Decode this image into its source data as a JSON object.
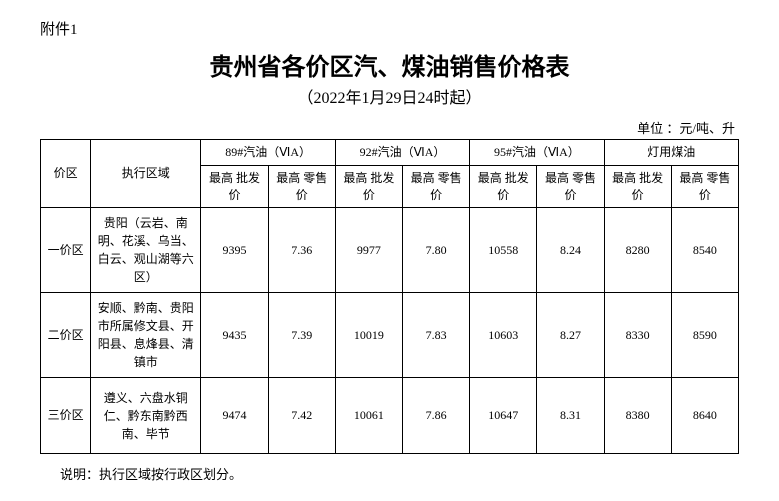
{
  "attachment": "附件1",
  "title": "贵州省各价区汽、煤油销售价格表",
  "subtitle": "（2022年1月29日24时起）",
  "unit": "单位 ：元/吨、升",
  "headers": {
    "zone": "价区",
    "region": "执行区域",
    "groups": [
      "89#汽油（ⅥA）",
      "92#汽油（ⅥA）",
      "95#汽油（ⅥA）",
      "灯用煤油"
    ],
    "sub_wholesale": "最高\n批发价",
    "sub_retail": "最高\n零售价"
  },
  "rows": [
    {
      "zone": "一价区",
      "region": "贵阳（云岩、南明、花溪、乌当、白云、观山湖等六区）",
      "vals": [
        "9395",
        "7.36",
        "9977",
        "7.80",
        "10558",
        "8.24",
        "8280",
        "8540"
      ]
    },
    {
      "zone": "二价区",
      "region": "安顺、黔南、贵阳市所属修文县、开阳县、息烽县、清镇市",
      "vals": [
        "9435",
        "7.39",
        "10019",
        "7.83",
        "10603",
        "8.27",
        "8330",
        "8590"
      ]
    },
    {
      "zone": "三价区",
      "region": "遵义、六盘水铜仁、黔东南黔西南、毕节",
      "vals": [
        "9474",
        "7.42",
        "10061",
        "7.86",
        "10647",
        "8.31",
        "8380",
        "8640"
      ]
    }
  ],
  "note": "说明：执行区域按行政区划分。"
}
